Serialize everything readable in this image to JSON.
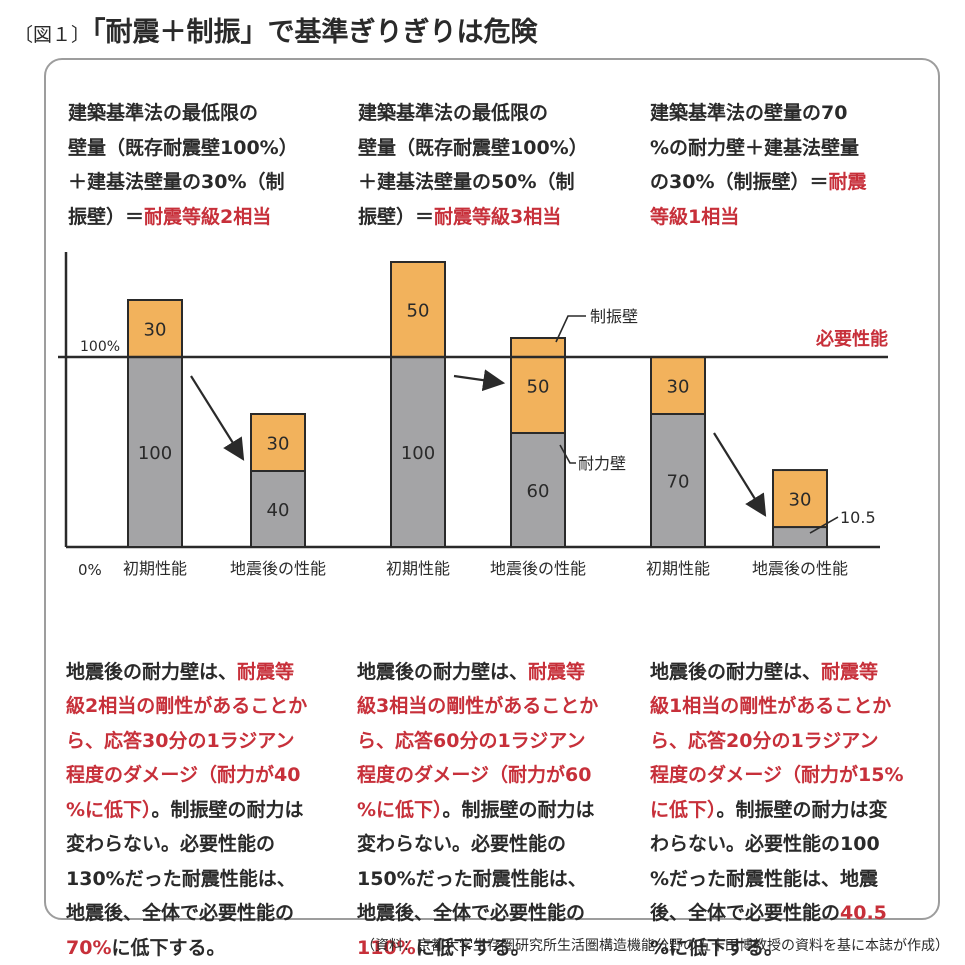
{
  "title": {
    "figure_label": "〔図１〕",
    "text": "「耐震＋制振」で基準ぎりぎりは危険"
  },
  "columns": [
    {
      "desc_black": "建築基準法の最低限の\n壁量（既存耐震壁100%）\n＋建基法壁量の30%（制\n振壁）＝",
      "desc_red": "耐震等級2相当",
      "note_parts": [
        {
          "text": "地震後の耐力壁は、",
          "red": false
        },
        {
          "text": "耐震等\n級2相当の剛性があることか\nら、応答30分の1ラジアン\n程度のダメージ（耐力が40\n%に低下）",
          "red": true
        },
        {
          "text": "。制振壁の耐力は\n変わらない。必要性能の\n130%だった耐震性能は、\n地震後、全体で必要性能の\n",
          "red": false
        },
        {
          "text": "70%",
          "red": true
        },
        {
          "text": "に低下する。",
          "red": false
        }
      ]
    },
    {
      "desc_black": "建築基準法の最低限の\n壁量（既存耐震壁100%）\n＋建基法壁量の50%（制\n振壁）＝",
      "desc_red": "耐震等級3相当",
      "note_parts": [
        {
          "text": "地震後の耐力壁は、",
          "red": false
        },
        {
          "text": "耐震等\n級3相当の剛性があることか\nら、応答60分の1ラジアン\n程度のダメージ（耐力が60\n%に低下）",
          "red": true
        },
        {
          "text": "。制振壁の耐力は\n変わらない。必要性能の\n150%だった耐震性能は、\n地震後、全体で必要性能の\n",
          "red": false
        },
        {
          "text": "110%",
          "red": true
        },
        {
          "text": "に低下する。",
          "red": false
        }
      ]
    },
    {
      "desc_black": "建築基準法の壁量の70\n%の耐力壁＋建基法壁量\nの30%（制振壁）＝",
      "desc_red": "耐震\n等級1相当",
      "note_parts": [
        {
          "text": "地震後の耐力壁は、",
          "red": false
        },
        {
          "text": "耐震等\n級1相当の剛性があることか\nら、応答20分の1ラジアン\n程度のダメージ（耐力が15%\nに低下）",
          "red": true
        },
        {
          "text": "。制振壁の耐力は変\nわらない。必要性能の100\n%だった耐震性能は、地震\n後、全体で必要性能の",
          "red": false
        },
        {
          "text": "40.5\n",
          "red": true
        },
        {
          "text": "%に低下する。",
          "red": false
        }
      ]
    }
  ],
  "chart_data": {
    "type": "bar",
    "stacked": true,
    "y_tick_labels": [
      "0%",
      "100%"
    ],
    "ylim": [
      0,
      150
    ],
    "reference_line": {
      "value": 100,
      "label": "必要性能",
      "color": "#c7303a"
    },
    "groups": [
      {
        "categories": [
          "初期性能",
          "地震後の性能"
        ],
        "耐力壁": [
          100,
          40
        ],
        "制振壁": [
          30,
          30
        ]
      },
      {
        "categories": [
          "初期性能",
          "地震後の性能"
        ],
        "耐力壁": [
          100,
          60
        ],
        "制振壁": [
          50,
          50
        ]
      },
      {
        "categories": [
          "初期性能",
          "地震後の性能"
        ],
        "耐力壁": [
          70,
          10.5
        ],
        "制振壁": [
          30,
          30
        ]
      }
    ],
    "series": [
      {
        "name": "耐力壁",
        "color": "#a4a4a6"
      },
      {
        "name": "制振壁",
        "color": "#f2b25c"
      }
    ],
    "annotations": {
      "damper_label": "制振壁",
      "bearing_label": "耐力壁",
      "outside_value": "10.5"
    }
  },
  "source": "（資料：京都大学生存圏研究所生活圏構造機能分野の五十田博教授の資料を基に本誌が作成）"
}
